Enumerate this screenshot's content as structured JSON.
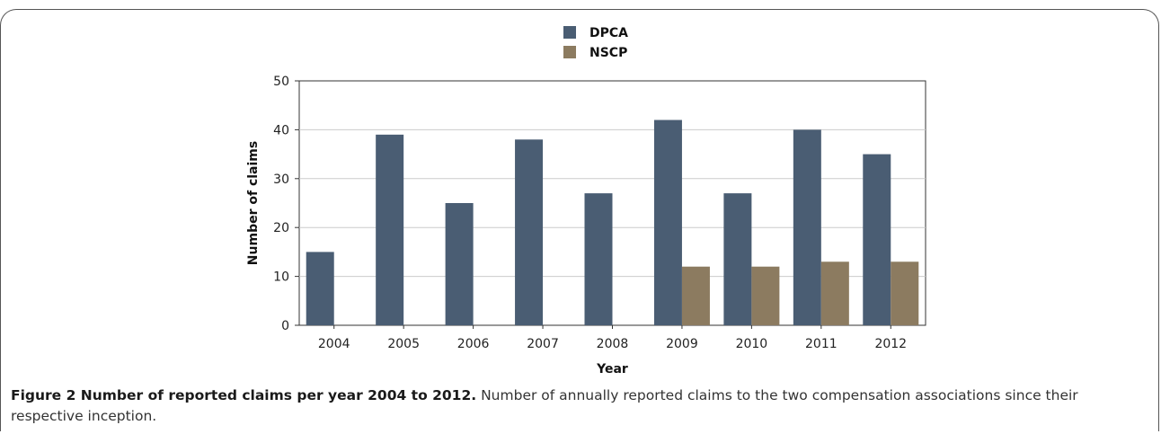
{
  "colors": {
    "DPCA": "#4a5d73",
    "NSCP": "#8c7b60",
    "grid": "#cccccc",
    "axis": "#333333"
  },
  "chart_data": {
    "type": "bar",
    "title": "",
    "xlabel": "Year",
    "ylabel": "Number of claims",
    "ylim": [
      0,
      50
    ],
    "yticks": [
      0,
      10,
      20,
      30,
      40,
      50
    ],
    "grid": true,
    "legend_position": "top-center",
    "categories": [
      "2004",
      "2005",
      "2006",
      "2007",
      "2008",
      "2009",
      "2010",
      "2011",
      "2012"
    ],
    "series": [
      {
        "name": "DPCA",
        "values": [
          15,
          39,
          25,
          38,
          27,
          42,
          27,
          40,
          35
        ]
      },
      {
        "name": "NSCP",
        "values": [
          0,
          0,
          0,
          0,
          0,
          12,
          12,
          13,
          13
        ]
      }
    ]
  },
  "caption": {
    "label": "Figure 2 Number of reported claims per year 2004 to 2012.",
    "text": " Number of annually reported claims to the two compensation associations since their respective inception."
  }
}
